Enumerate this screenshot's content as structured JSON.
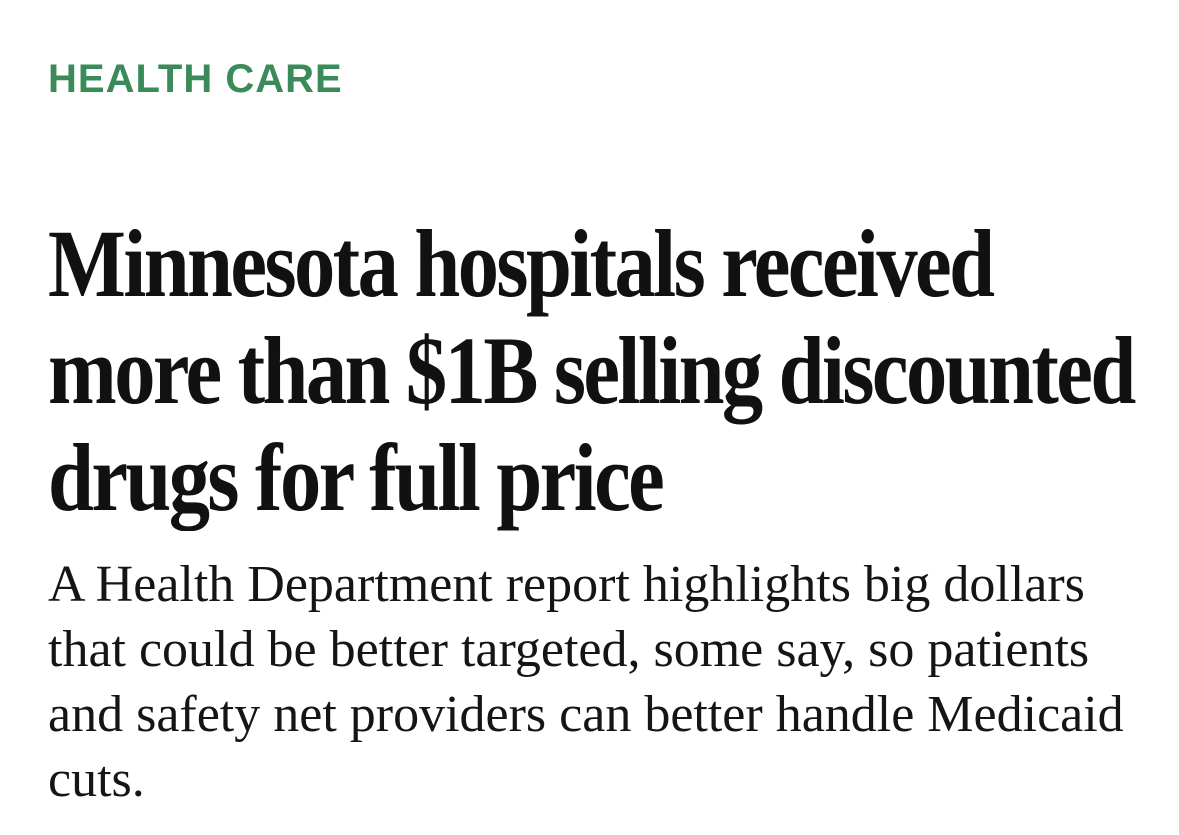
{
  "section": {
    "label": "HEALTH CARE",
    "color": "#3a8a5a"
  },
  "article": {
    "headline": "Minnesota hospitals received more than $1B selling discounted drugs for full price",
    "dek": "A Health Department report highlights big dollars that could be better targeted, some say, so patients and safety net providers can better handle Medicaid cuts."
  }
}
